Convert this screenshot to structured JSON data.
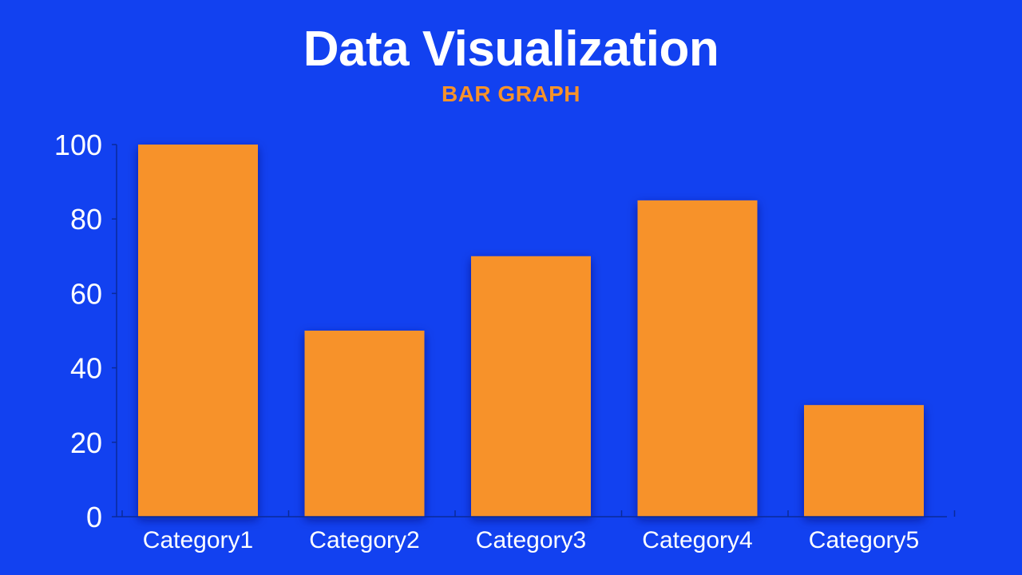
{
  "colors": {
    "background": "#1241f0",
    "bar": "#f7922a",
    "axis": "#0a2a9a",
    "text": "#ffffff",
    "subtitle": "#f7922a"
  },
  "chart_data": {
    "type": "bar",
    "title": "Data Visualization",
    "subtitle": "BAR GRAPH",
    "categories": [
      "Category1",
      "Category2",
      "Category3",
      "Category4",
      "Category5"
    ],
    "values": [
      100,
      50,
      70,
      85,
      30
    ],
    "yticks": [
      0,
      20,
      40,
      60,
      80,
      100
    ],
    "ylim": [
      0,
      100
    ],
    "xlabel": "",
    "ylabel": "",
    "grid": false,
    "legend": "none"
  }
}
